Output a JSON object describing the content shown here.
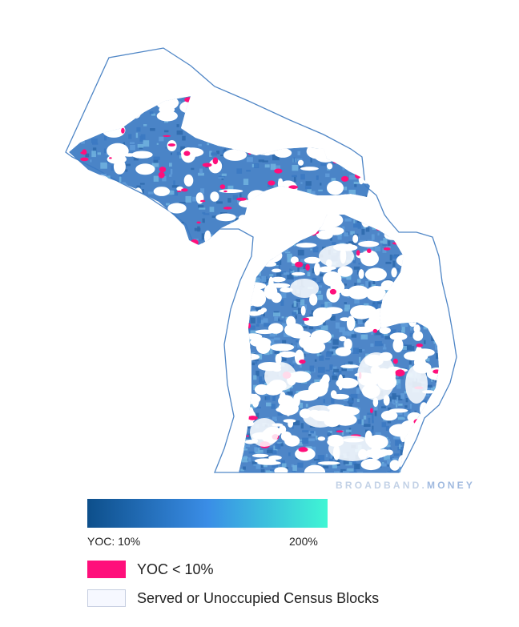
{
  "watermark": {
    "brand": "BROADBAND",
    "sep": ".",
    "suffix": "MONEY"
  },
  "legend": {
    "gradient_colors": [
      "#0d4f8b",
      "#3a8de6",
      "#3ff6d4"
    ],
    "min_label": "YOC: 10%",
    "max_label": "200%",
    "low_yoc": {
      "label": "YOC < 10%",
      "color": "#ff0f7b"
    },
    "served": {
      "label": "Served or Unoccupied Census Blocks",
      "color": "#f6f8ff",
      "border": "#c5cde0"
    }
  },
  "map": {
    "outline_color": "#4f86c6",
    "fill_colors": [
      "#3b79c2",
      "#2f6aad",
      "#5f9bd8",
      "#6fb0de"
    ],
    "highlight_color": "#ff0f7b"
  }
}
